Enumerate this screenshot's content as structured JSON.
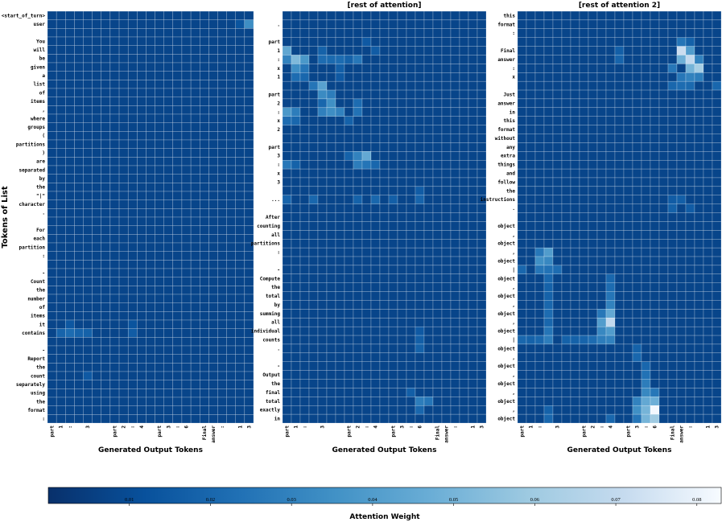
{
  "chart_data": {
    "type": "heatmap",
    "ylabel": "Tokens of List",
    "colorbar": {
      "label": "Attention Weight",
      "range": [
        0.0,
        0.083
      ],
      "ticks": [
        "0.01",
        "0.02",
        "0.03",
        "0.04",
        "0.05",
        "0.06",
        "0.07",
        "0.08"
      ],
      "colors": [
        "#08306b",
        "#08519c",
        "#2171b5",
        "#4292c6",
        "#6baed6",
        "#9ecae1",
        "#c6dbef",
        "#f7fbff"
      ]
    },
    "base_value": 0.0075,
    "panels": [
      {
        "title": "",
        "xlabel": "Generated Output Tokens",
        "x_tokens": [
          "part",
          "1",
          ":",
          "",
          "3",
          "",
          "",
          "part",
          "2",
          ":",
          "4",
          "",
          "part",
          "3",
          ":",
          "6",
          "",
          "Final",
          "answer",
          ":",
          "",
          "1",
          "3"
        ],
        "y_tokens": [
          "<start_of_turn>",
          "user",
          "",
          "You",
          "will",
          "be",
          "given",
          "a",
          "list",
          "of",
          "items",
          ",",
          "where",
          "groups",
          "(",
          "partitions",
          ")",
          "are",
          "separated",
          "by",
          "the",
          "\"|\"",
          "character",
          ".",
          "",
          "For",
          "each",
          "partition",
          ":",
          "",
          "-",
          "Count",
          "the",
          "number",
          "of",
          "items",
          "it",
          "contains",
          "",
          "-",
          "Report",
          "the",
          "count",
          "separately",
          "using",
          "the",
          "format",
          ":"
        ],
        "highlights": [
          {
            "row": 1,
            "col": 22,
            "v": 0.034
          },
          {
            "row": 37,
            "col": 1,
            "v": 0.019
          },
          {
            "row": 37,
            "col": 2,
            "v": 0.022
          },
          {
            "row": 37,
            "col": 3,
            "v": 0.019
          },
          {
            "row": 37,
            "col": 4,
            "v": 0.018
          },
          {
            "row": 36,
            "col": 2,
            "v": 0.014
          },
          {
            "row": 36,
            "col": 9,
            "v": 0.013
          },
          {
            "row": 37,
            "col": 9,
            "v": 0.016
          },
          {
            "row": 42,
            "col": 4,
            "v": 0.015
          },
          {
            "row": 1,
            "col": 21,
            "v": 0.013
          }
        ]
      },
      {
        "title": "[rest of attention]",
        "xlabel": "Generated Output Tokens",
        "x_tokens": [
          "part",
          "1",
          ":",
          "",
          "3",
          "",
          "",
          "part",
          "2",
          ":",
          "4",
          "",
          "part",
          "3",
          ":",
          "6",
          "",
          "Final",
          "answer",
          ":",
          "",
          "1",
          "3"
        ],
        "y_tokens": [
          "",
          ".",
          "",
          "part",
          "1",
          ":",
          "x",
          "1",
          "",
          "part",
          "2",
          ":",
          "x",
          "2",
          "",
          "part",
          "3",
          ":",
          "x",
          "3",
          "",
          "...",
          "",
          "After",
          "counting",
          "all",
          "partitions",
          ":",
          "",
          "-",
          "Compute",
          "the",
          "total",
          "by",
          "summing",
          "all",
          "individual",
          "counts",
          ".",
          "",
          "-",
          "Output",
          "the",
          "final",
          "total",
          "exactly",
          "in"
        ],
        "highlights": [
          {
            "row": 4,
            "col": 0,
            "v": 0.044
          },
          {
            "row": 5,
            "col": 1,
            "v": 0.052
          },
          {
            "row": 5,
            "col": 2,
            "v": 0.038
          },
          {
            "row": 5,
            "col": 0,
            "v": 0.03
          },
          {
            "row": 6,
            "col": 1,
            "v": 0.034
          },
          {
            "row": 6,
            "col": 2,
            "v": 0.025
          },
          {
            "row": 4,
            "col": 4,
            "v": 0.018
          },
          {
            "row": 5,
            "col": 4,
            "v": 0.022
          },
          {
            "row": 5,
            "col": 5,
            "v": 0.021
          },
          {
            "row": 5,
            "col": 6,
            "v": 0.022
          },
          {
            "row": 5,
            "col": 7,
            "v": 0.018
          },
          {
            "row": 5,
            "col": 8,
            "v": 0.026
          },
          {
            "row": 7,
            "col": 1,
            "v": 0.022
          },
          {
            "row": 7,
            "col": 2,
            "v": 0.02
          },
          {
            "row": 8,
            "col": 3,
            "v": 0.025
          },
          {
            "row": 8,
            "col": 4,
            "v": 0.042
          },
          {
            "row": 9,
            "col": 4,
            "v": 0.033
          },
          {
            "row": 9,
            "col": 5,
            "v": 0.028
          },
          {
            "row": 10,
            "col": 4,
            "v": 0.02
          },
          {
            "row": 10,
            "col": 5,
            "v": 0.035
          },
          {
            "row": 11,
            "col": 4,
            "v": 0.029
          },
          {
            "row": 11,
            "col": 5,
            "v": 0.034
          },
          {
            "row": 11,
            "col": 6,
            "v": 0.03
          },
          {
            "row": 11,
            "col": 0,
            "v": 0.038
          },
          {
            "row": 11,
            "col": 1,
            "v": 0.028
          },
          {
            "row": 10,
            "col": 8,
            "v": 0.022
          },
          {
            "row": 11,
            "col": 8,
            "v": 0.024
          },
          {
            "row": 12,
            "col": 0,
            "v": 0.022
          },
          {
            "row": 12,
            "col": 1,
            "v": 0.02
          },
          {
            "row": 12,
            "col": 7,
            "v": 0.018
          },
          {
            "row": 16,
            "col": 8,
            "v": 0.03
          },
          {
            "row": 16,
            "col": 9,
            "v": 0.045
          },
          {
            "row": 17,
            "col": 8,
            "v": 0.028
          },
          {
            "row": 17,
            "col": 9,
            "v": 0.025
          },
          {
            "row": 17,
            "col": 10,
            "v": 0.02
          },
          {
            "row": 17,
            "col": 0,
            "v": 0.026
          },
          {
            "row": 17,
            "col": 1,
            "v": 0.018
          },
          {
            "row": 16,
            "col": 7,
            "v": 0.018
          },
          {
            "row": 21,
            "col": 0,
            "v": 0.019
          },
          {
            "row": 21,
            "col": 3,
            "v": 0.02
          },
          {
            "row": 21,
            "col": 8,
            "v": 0.018
          },
          {
            "row": 21,
            "col": 10,
            "v": 0.02
          },
          {
            "row": 21,
            "col": 12,
            "v": 0.017
          },
          {
            "row": 20,
            "col": 15,
            "v": 0.016
          },
          {
            "row": 21,
            "col": 15,
            "v": 0.019
          },
          {
            "row": 36,
            "col": 15,
            "v": 0.015
          },
          {
            "row": 37,
            "col": 15,
            "v": 0.017
          },
          {
            "row": 38,
            "col": 15,
            "v": 0.018
          },
          {
            "row": 44,
            "col": 15,
            "v": 0.028
          },
          {
            "row": 44,
            "col": 16,
            "v": 0.025
          },
          {
            "row": 45,
            "col": 15,
            "v": 0.02
          },
          {
            "row": 43,
            "col": 14,
            "v": 0.017
          },
          {
            "row": 4,
            "col": 10,
            "v": 0.016
          },
          {
            "row": 3,
            "col": 9,
            "v": 0.015
          },
          {
            "row": 6,
            "col": 6,
            "v": 0.017
          },
          {
            "row": 7,
            "col": 6,
            "v": 0.015
          }
        ]
      },
      {
        "title": "[rest of attention 2]",
        "xlabel": "Generated Output Tokens",
        "x_tokens": [
          "part",
          "1",
          ":",
          "",
          "3",
          "",
          "",
          "part",
          "2",
          ":",
          "4",
          "",
          "part",
          "3",
          ":",
          "6",
          "",
          "Final",
          "answer",
          ":",
          "",
          "1",
          "3"
        ],
        "y_tokens": [
          "this",
          "format",
          ":",
          "",
          "Final",
          "answer",
          ":",
          "x",
          "",
          "Just",
          "answer",
          "in",
          "this",
          "format",
          "without",
          "any",
          "extra",
          "things",
          "and",
          "follow",
          "the",
          "instructions",
          ".",
          "",
          "object",
          ",",
          "object",
          ",",
          "object",
          "|",
          "object",
          ",",
          "object",
          ",",
          "object",
          ",",
          "object",
          "|",
          "object",
          ",",
          "object",
          ",",
          "object",
          ",",
          "object",
          ",",
          "object"
        ],
        "highlights": [
          {
            "row": 3,
            "col": 18,
            "v": 0.025
          },
          {
            "row": 3,
            "col": 19,
            "v": 0.018
          },
          {
            "row": 4,
            "col": 18,
            "v": 0.072
          },
          {
            "row": 4,
            "col": 19,
            "v": 0.04
          },
          {
            "row": 5,
            "col": 18,
            "v": 0.048
          },
          {
            "row": 5,
            "col": 19,
            "v": 0.07
          },
          {
            "row": 5,
            "col": 20,
            "v": 0.03
          },
          {
            "row": 6,
            "col": 19,
            "v": 0.05
          },
          {
            "row": 6,
            "col": 20,
            "v": 0.062
          },
          {
            "row": 6,
            "col": 17,
            "v": 0.026
          },
          {
            "row": 7,
            "col": 18,
            "v": 0.026
          },
          {
            "row": 7,
            "col": 19,
            "v": 0.03
          },
          {
            "row": 7,
            "col": 20,
            "v": 0.028
          },
          {
            "row": 8,
            "col": 17,
            "v": 0.02
          },
          {
            "row": 8,
            "col": 18,
            "v": 0.022
          },
          {
            "row": 8,
            "col": 19,
            "v": 0.021
          },
          {
            "row": 8,
            "col": 22,
            "v": 0.02
          },
          {
            "row": 4,
            "col": 11,
            "v": 0.017
          },
          {
            "row": 5,
            "col": 11,
            "v": 0.019
          },
          {
            "row": 21,
            "col": 17,
            "v": 0.016
          },
          {
            "row": 21,
            "col": 18,
            "v": 0.017
          },
          {
            "row": 22,
            "col": 17,
            "v": 0.018
          },
          {
            "row": 22,
            "col": 19,
            "v": 0.016
          },
          {
            "row": 27,
            "col": 2,
            "v": 0.026
          },
          {
            "row": 27,
            "col": 3,
            "v": 0.04
          },
          {
            "row": 28,
            "col": 2,
            "v": 0.035
          },
          {
            "row": 28,
            "col": 3,
            "v": 0.032
          },
          {
            "row": 29,
            "col": 2,
            "v": 0.025
          },
          {
            "row": 29,
            "col": 3,
            "v": 0.024
          },
          {
            "row": 29,
            "col": 4,
            "v": 0.022
          },
          {
            "row": 29,
            "col": 0,
            "v": 0.02
          },
          {
            "row": 30,
            "col": 3,
            "v": 0.02
          },
          {
            "row": 31,
            "col": 3,
            "v": 0.018
          },
          {
            "row": 32,
            "col": 3,
            "v": 0.018
          },
          {
            "row": 33,
            "col": 3,
            "v": 0.02
          },
          {
            "row": 34,
            "col": 3,
            "v": 0.022
          },
          {
            "row": 35,
            "col": 3,
            "v": 0.02
          },
          {
            "row": 36,
            "col": 3,
            "v": 0.025
          },
          {
            "row": 37,
            "col": 3,
            "v": 0.028
          },
          {
            "row": 37,
            "col": 2,
            "v": 0.02
          },
          {
            "row": 37,
            "col": 0,
            "v": 0.02
          },
          {
            "row": 37,
            "col": 1,
            "v": 0.018
          },
          {
            "row": 37,
            "col": 5,
            "v": 0.018
          },
          {
            "row": 37,
            "col": 6,
            "v": 0.018
          },
          {
            "row": 37,
            "col": 7,
            "v": 0.019
          },
          {
            "row": 37,
            "col": 8,
            "v": 0.022
          },
          {
            "row": 37,
            "col": 9,
            "v": 0.028
          },
          {
            "row": 37,
            "col": 10,
            "v": 0.03
          },
          {
            "row": 30,
            "col": 10,
            "v": 0.02
          },
          {
            "row": 31,
            "col": 10,
            "v": 0.022
          },
          {
            "row": 32,
            "col": 10,
            "v": 0.025
          },
          {
            "row": 33,
            "col": 10,
            "v": 0.03
          },
          {
            "row": 34,
            "col": 10,
            "v": 0.045
          },
          {
            "row": 34,
            "col": 9,
            "v": 0.026
          },
          {
            "row": 35,
            "col": 9,
            "v": 0.04
          },
          {
            "row": 35,
            "col": 10,
            "v": 0.07
          },
          {
            "row": 36,
            "col": 9,
            "v": 0.032
          },
          {
            "row": 36,
            "col": 10,
            "v": 0.04
          },
          {
            "row": 38,
            "col": 13,
            "v": 0.018
          },
          {
            "row": 39,
            "col": 13,
            "v": 0.02
          },
          {
            "row": 40,
            "col": 14,
            "v": 0.02
          },
          {
            "row": 41,
            "col": 14,
            "v": 0.024
          },
          {
            "row": 42,
            "col": 14,
            "v": 0.028
          },
          {
            "row": 43,
            "col": 14,
            "v": 0.032
          },
          {
            "row": 43,
            "col": 15,
            "v": 0.026
          },
          {
            "row": 44,
            "col": 13,
            "v": 0.03
          },
          {
            "row": 44,
            "col": 14,
            "v": 0.045
          },
          {
            "row": 44,
            "col": 15,
            "v": 0.048
          },
          {
            "row": 45,
            "col": 13,
            "v": 0.035
          },
          {
            "row": 45,
            "col": 14,
            "v": 0.05
          },
          {
            "row": 45,
            "col": 15,
            "v": 0.082
          },
          {
            "row": 46,
            "col": 14,
            "v": 0.05
          },
          {
            "row": 46,
            "col": 15,
            "v": 0.06
          },
          {
            "row": 46,
            "col": 13,
            "v": 0.025
          },
          {
            "row": 46,
            "col": 3,
            "v": 0.02
          },
          {
            "row": 46,
            "col": 10,
            "v": 0.02
          },
          {
            "row": 45,
            "col": 3,
            "v": 0.018
          }
        ]
      }
    ]
  }
}
